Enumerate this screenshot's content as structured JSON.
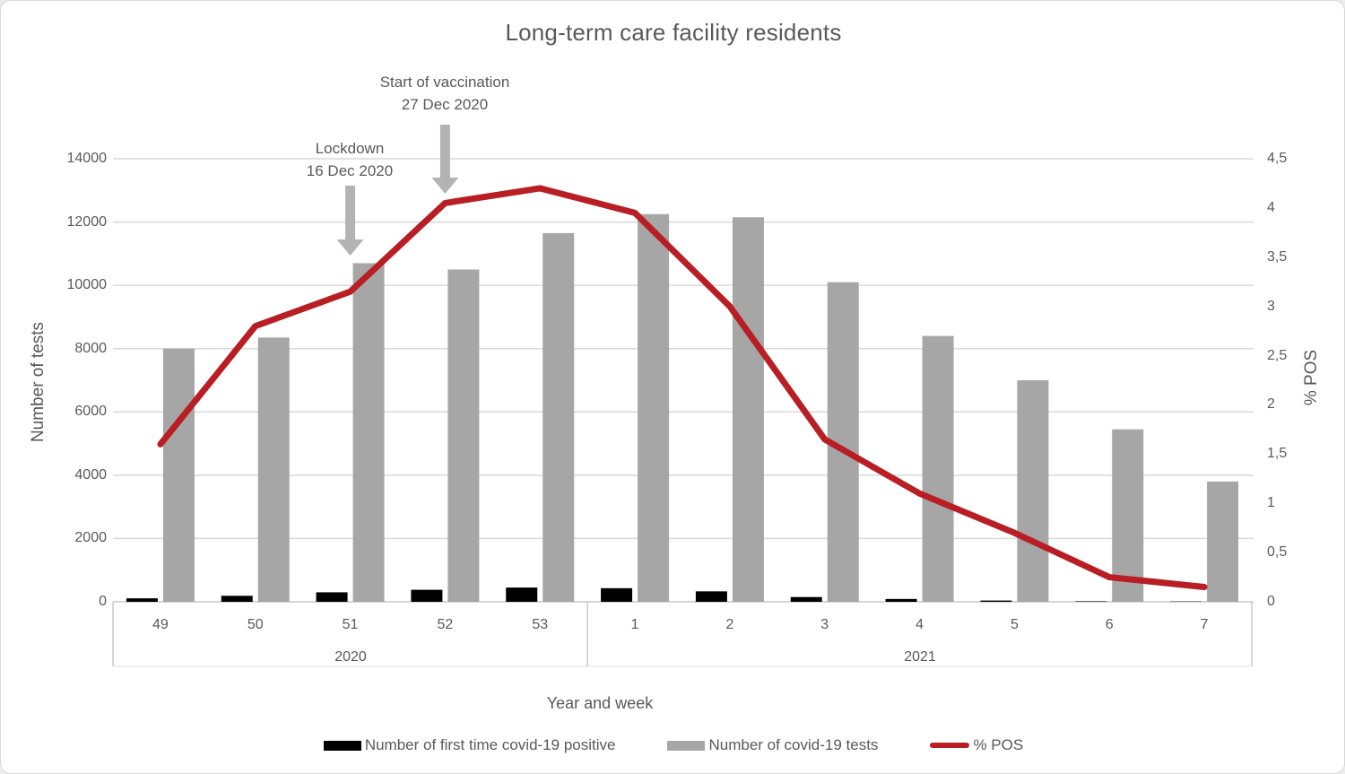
{
  "chart_data": {
    "type": "bar+line",
    "title": "Long-term care facility residents",
    "x_axis_title": "Year and week",
    "grid": true,
    "legend_position": "bottom",
    "y_left": {
      "label": "Number of tests",
      "min": 0,
      "max": 14000,
      "tick_step": 2000,
      "tick_labels": [
        "0",
        "2000",
        "4000",
        "6000",
        "8000",
        "10000",
        "12000",
        "14000"
      ]
    },
    "y_right": {
      "label": "% POS",
      "min": 0,
      "max": 4.5,
      "tick_step": 0.5,
      "tick_labels": [
        "0",
        "0,5",
        "1",
        "1,5",
        "2",
        "2,5",
        "3",
        "3,5",
        "4",
        "4,5"
      ]
    },
    "categories": [
      "49",
      "50",
      "51",
      "52",
      "53",
      "1",
      "2",
      "3",
      "4",
      "5",
      "6",
      "7"
    ],
    "groups": [
      {
        "label": "2020",
        "weeks": [
          "49",
          "50",
          "51",
          "52",
          "53"
        ]
      },
      {
        "label": "2021",
        "weeks": [
          "1",
          "2",
          "3",
          "4",
          "5",
          "6",
          "7"
        ]
      }
    ],
    "series": [
      {
        "name": "Number of first time covid-19 positive",
        "type": "bar",
        "axis": "left",
        "color": "#000000",
        "values": [
          110,
          190,
          300,
          380,
          450,
          430,
          330,
          150,
          90,
          40,
          15,
          10
        ]
      },
      {
        "name": "Number of covid-19 tests",
        "type": "bar",
        "axis": "left",
        "color": "#a6a6a6",
        "values": [
          8000,
          8350,
          10700,
          10500,
          11650,
          12250,
          12150,
          10100,
          8400,
          7000,
          5450,
          3800
        ]
      },
      {
        "name": "% POS",
        "type": "line",
        "axis": "right",
        "color": "#b81e23",
        "values": [
          1.6,
          2.8,
          3.15,
          4.05,
          4.2,
          3.95,
          3.0,
          1.65,
          1.1,
          0.7,
          0.25,
          0.15
        ]
      }
    ],
    "annotations": [
      {
        "lines": [
          "Start of vaccination",
          "27 Dec 2020"
        ],
        "week": "52"
      },
      {
        "lines": [
          "Lockdown",
          "16 Dec 2020"
        ],
        "week": "51"
      }
    ],
    "annotation_arrow_color": "#b3b3b3",
    "gridline_color": "#d9d9d9",
    "axis_line_color": "#c9c9c9",
    "text_color": "#595959"
  }
}
